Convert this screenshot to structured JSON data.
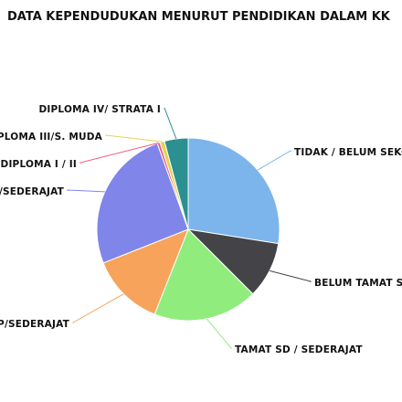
{
  "chart_data": {
    "type": "pie",
    "title": "DATA KEPENDUDUKAN MENURUT PENDIDIKAN DALAM KK",
    "slices": [
      {
        "label": "TIDAK / BELUM SEKOLAH",
        "value": 27.5,
        "color": "#7cb5ec"
      },
      {
        "label": "BELUM TAMAT SD / SEDERAJAT",
        "value": 10.0,
        "color": "#434348"
      },
      {
        "label": "TAMAT SD / SEDERAJAT",
        "value": 18.5,
        "color": "#90ed7d"
      },
      {
        "label": "SLTP/SEDERAJAT",
        "value": 13.0,
        "color": "#f7a35c"
      },
      {
        "label": "SLTA/SEDERAJAT",
        "value": 25.5,
        "color": "#8085e9"
      },
      {
        "label": "DIPLOMA I / II",
        "value": 0.5,
        "color": "#f15c80"
      },
      {
        "label": "AKADEMI/DIPLOMA III/S. MUDA",
        "value": 0.8,
        "color": "#e4d354"
      },
      {
        "label": "DIPLOMA IV/ STRATA I",
        "value": 4.2,
        "color": "#2b908f"
      }
    ]
  }
}
